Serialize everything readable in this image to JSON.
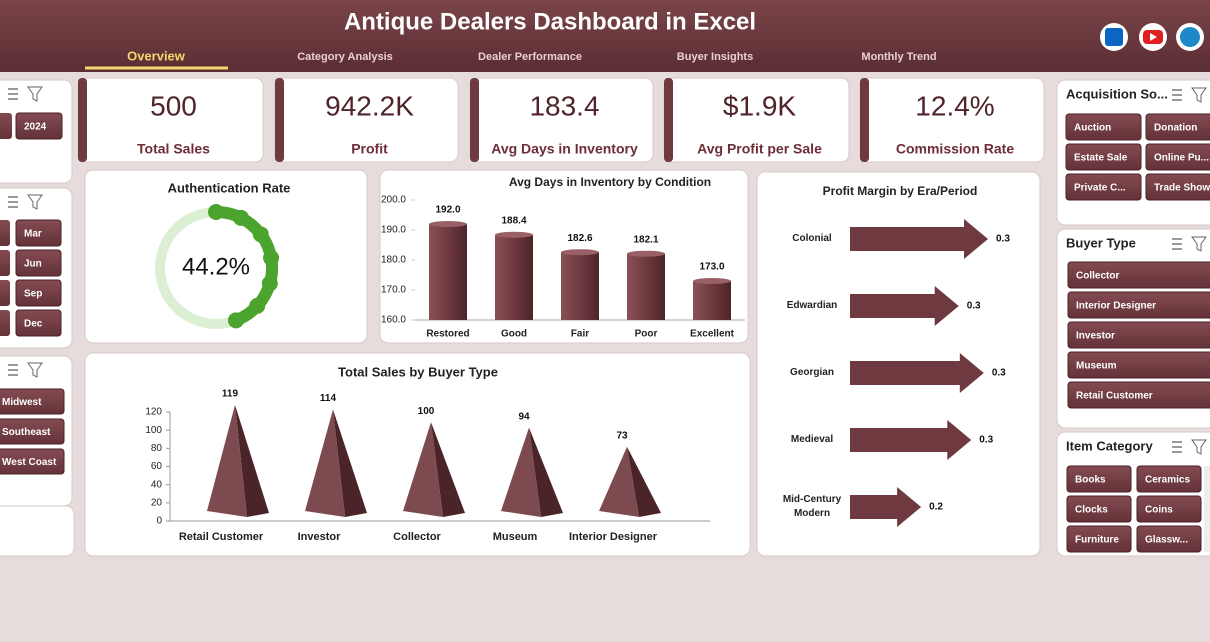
{
  "header": {
    "title": "Antique Dealers Dashboard in Excel",
    "tabs": [
      "Overview",
      "Category Analysis",
      "Dealer Performance",
      "Buyer Insights",
      "Monthly Trend"
    ]
  },
  "kpis": [
    {
      "value": "500",
      "label": "Total Sales"
    },
    {
      "value": "942.2K",
      "label": "Profit"
    },
    {
      "value": "183.4",
      "label": "Avg Days in Inventory"
    },
    {
      "value": "$1.9K",
      "label": "Avg Profit per Sale"
    },
    {
      "value": "12.4%",
      "label": "Commission Rate"
    }
  ],
  "left_slicers": {
    "year": [
      "2024"
    ],
    "month": [
      "Mar",
      "Jun",
      "Sep",
      "Dec"
    ],
    "region": [
      "Midwest",
      "Southeast",
      "West Coast"
    ]
  },
  "right_slicers": [
    {
      "title": "Acquisition So...",
      "items": [
        "Auction",
        "Donation",
        "Estate Sale",
        "Online Pu...",
        "Private C...",
        "Trade Show"
      ]
    },
    {
      "title": "Buyer Type",
      "items": [
        "Collector",
        "Interior Designer",
        "Investor",
        "Museum",
        "Retail Customer"
      ]
    },
    {
      "title": "Item Category",
      "items": [
        "Books",
        "Ceramics",
        "Clocks",
        "Coins",
        "Furniture",
        "Glassw..."
      ]
    }
  ],
  "chart_data": [
    {
      "type": "donut",
      "title": "Authentication Rate",
      "values": [
        44.2
      ],
      "value_labels": [
        "44.2%"
      ],
      "color": "#4ba42d",
      "track_color": "#dcefd4"
    },
    {
      "type": "bar",
      "title": "Avg Days in Inventory by Condition",
      "categories": [
        "Restored",
        "Good",
        "Fair",
        "Poor",
        "Excellent"
      ],
      "values": [
        192.0,
        188.4,
        182.6,
        182.1,
        173.0
      ],
      "value_labels": [
        "192.0",
        "188.4",
        "182.6",
        "182.1",
        "173.0"
      ],
      "color": "#6e3a40",
      "ylim": [
        160,
        200
      ],
      "yticks": [
        {
          "value": 160,
          "label": "160.0"
        },
        {
          "value": 170,
          "label": "170.0"
        },
        {
          "value": 180,
          "label": "180.0"
        },
        {
          "value": 190,
          "label": "190.0"
        },
        {
          "value": 200,
          "label": "200.0"
        }
      ]
    },
    {
      "type": "cone",
      "title": "Total Sales by Buyer Type",
      "categories": [
        "Retail Customer",
        "Investor",
        "Collector",
        "Museum",
        "Interior Designer"
      ],
      "values": [
        119,
        114,
        100,
        94,
        73
      ],
      "color": "#7d4a50",
      "ylim": [
        0,
        120
      ],
      "yticks": [
        0,
        20,
        40,
        60,
        80,
        100,
        120
      ]
    },
    {
      "type": "arrow",
      "title": "Profit Margin by Era/Period",
      "categories": [
        "Colonial",
        "Edwardian",
        "Georgian",
        "Medieval",
        "Mid-Century Modern"
      ],
      "values": [
        0.33,
        0.26,
        0.32,
        0.29,
        0.17
      ],
      "value_labels": [
        "0.3",
        "0.3",
        "0.3",
        "0.3",
        "0.2"
      ],
      "color": "#6e3a40"
    }
  ]
}
